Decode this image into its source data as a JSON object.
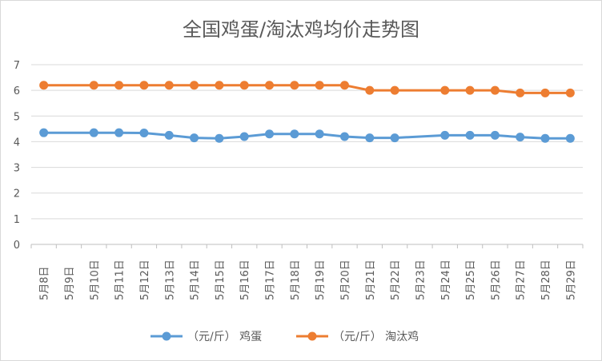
{
  "chart_data": {
    "type": "line",
    "title": "全国鸡蛋/淘汰鸡均价走势图",
    "xlabel": "",
    "ylabel": "",
    "ylim": [
      0,
      7
    ],
    "yticks": [
      "0",
      "1",
      "2",
      "3",
      "4",
      "5",
      "6",
      "7"
    ],
    "grid": "horizontal",
    "legend_position": "bottom",
    "categories": [
      "5月8日",
      "5月9日",
      "5月10日",
      "5月11日",
      "5月12日",
      "5月13日",
      "5月14日",
      "5月15日",
      "5月16日",
      "5月17日",
      "5月18日",
      "5月19日",
      "5月20日",
      "5月21日",
      "5月22日",
      "5月23日",
      "5月24日",
      "5月25日",
      "5月26日",
      "5月27日",
      "5月28日",
      "5月29日"
    ],
    "series": [
      {
        "name": "（元/斤） 鸡蛋",
        "color": "#5b9bd5",
        "values": [
          4.35,
          null,
          4.35,
          4.35,
          4.34,
          4.25,
          4.15,
          4.13,
          4.2,
          4.3,
          4.3,
          4.3,
          4.2,
          4.15,
          4.15,
          null,
          4.25,
          4.25,
          4.25,
          4.18,
          4.13,
          4.13
        ]
      },
      {
        "name": "（元/斤） 淘汰鸡",
        "color": "#ed7d31",
        "values": [
          6.2,
          null,
          6.2,
          6.2,
          6.2,
          6.2,
          6.2,
          6.2,
          6.2,
          6.2,
          6.2,
          6.2,
          6.2,
          6.0,
          6.0,
          null,
          6.0,
          6.0,
          6.0,
          5.9,
          5.9,
          5.9
        ]
      }
    ]
  }
}
